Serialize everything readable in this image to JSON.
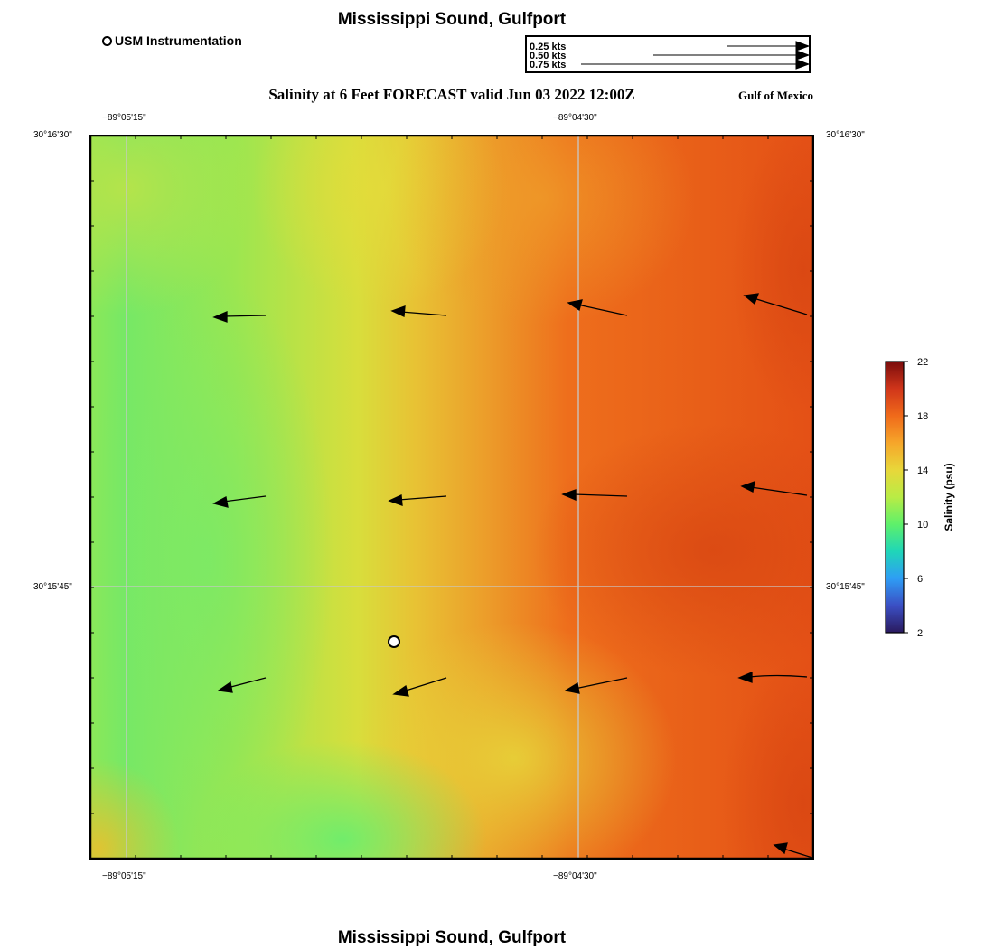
{
  "header": {
    "title": "Mississippi Sound, Gulfport",
    "subtitle": "Salinity at 6 Feet FORECAST valid Jun 03 2022 12:00Z",
    "region": "Gulf of Mexico",
    "station_legend_label": "USM Instrumentation"
  },
  "footer": {
    "title": "Mississippi Sound, Gulfport"
  },
  "vector_legend": [
    {
      "label": "0.25 kts",
      "speed": 0.25
    },
    {
      "label": "0.50 kts",
      "speed": 0.5
    },
    {
      "label": "0.75 kts",
      "speed": 0.75
    }
  ],
  "axes": {
    "lon_labels": [
      "−89°05'15\"",
      "−89°04'30\""
    ],
    "lat_labels": [
      "30°16'30\"",
      "30°15'45\""
    ]
  },
  "colorbar": {
    "label": "Salinity (psu)",
    "min": 2,
    "max": 22,
    "ticks": [
      "22",
      "18",
      "14",
      "10",
      "6",
      "2"
    ],
    "stops": [
      "#2a1a5e",
      "#3b4fc4",
      "#2e9df5",
      "#1fd6b8",
      "#5ef06a",
      "#b9ec45",
      "#e8d73a",
      "#f6a62a",
      "#f06a1a",
      "#d0351a",
      "#7a0c0c"
    ]
  },
  "station": {
    "name": "USM Instrumentation"
  },
  "salinity_field": {
    "range_psu": [
      11,
      19
    ]
  }
}
